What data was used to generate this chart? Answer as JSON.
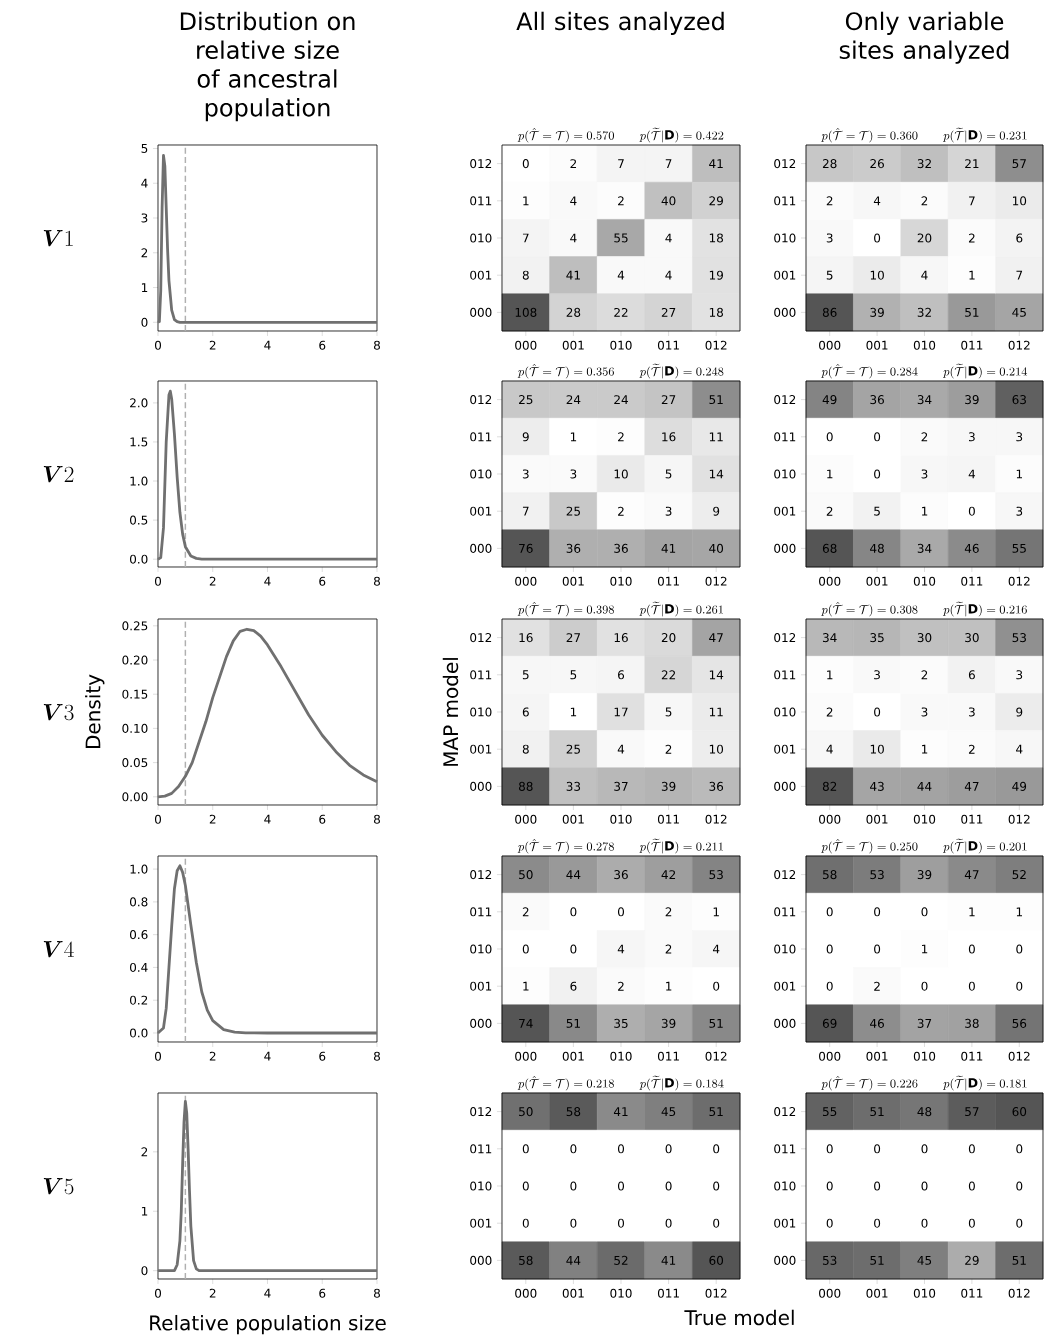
{
  "chart_data": [
    {
      "type": "line",
      "title": "Distribution on relative size of ancestral population",
      "annotations": [
        "\\boldsymbol{V}1"
      ],
      "x": [
        0,
        0.05,
        0.1,
        0.15,
        0.2,
        0.25,
        0.3,
        0.35,
        0.4,
        0.5,
        0.6,
        0.7,
        0.8,
        1.0,
        1.5,
        2,
        4,
        6,
        8
      ],
      "series": [
        {
          "color": "#707070",
          "values": [
            0,
            0.02,
            0.9,
            3.3,
            4.8,
            4.5,
            3.3,
            2.1,
            1.2,
            0.35,
            0.08,
            0.02,
            0,
            0,
            0,
            0,
            0,
            0,
            0
          ]
        }
      ],
      "xlim": [
        0,
        8
      ],
      "xticks": [
        0,
        2,
        4,
        6,
        8
      ],
      "ylim": [
        -0.25,
        5.1
      ],
      "yticks": [
        0,
        1,
        2,
        3,
        4,
        5
      ],
      "ref_lines": [
        {
          "axis": "x",
          "value": 1,
          "color": "#b0b0b0",
          "line_style": "dashed"
        }
      ]
    },
    {
      "type": "heatmap",
      "title": "All sites analyzed",
      "subtitle": "p(\\hat{\\mathcal{T}} = \\mathcal{T}) = 0.570 \\qquad p(\\widetilde{\\mathcal{T}}|\\mathbf{D}) = 0.422",
      "categories": [
        "000",
        "001",
        "010",
        "011",
        "012"
      ],
      "y_categories": [
        "012",
        "011",
        "010",
        "001",
        "000"
      ],
      "data_labels": true,
      "cells": [
        [
          0,
          2,
          7,
          7,
          41
        ],
        [
          1,
          4,
          2,
          40,
          29
        ],
        [
          7,
          4,
          55,
          4,
          18
        ],
        [
          8,
          41,
          4,
          4,
          19
        ],
        [
          108,
          28,
          22,
          27,
          18
        ]
      ]
    },
    {
      "type": "heatmap",
      "title": "Only variable sites analyzed",
      "subtitle": "p(\\hat{\\mathcal{T}} = \\mathcal{T}) = 0.360 \\qquad p(\\widetilde{\\mathcal{T}}|\\mathbf{D}) = 0.231",
      "categories": [
        "000",
        "001",
        "010",
        "011",
        "012"
      ],
      "y_categories": [
        "012",
        "011",
        "010",
        "001",
        "000"
      ],
      "data_labels": true,
      "cells": [
        [
          28,
          26,
          32,
          21,
          57
        ],
        [
          2,
          4,
          2,
          7,
          10
        ],
        [
          3,
          0,
          20,
          2,
          6
        ],
        [
          5,
          10,
          4,
          1,
          7
        ],
        [
          86,
          39,
          32,
          51,
          45
        ]
      ]
    },
    {
      "type": "line",
      "annotations": [
        "\\boldsymbol{V}2"
      ],
      "x": [
        0,
        0.1,
        0.2,
        0.3,
        0.4,
        0.45,
        0.5,
        0.6,
        0.7,
        0.8,
        0.9,
        1.0,
        1.2,
        1.4,
        1.6,
        2,
        3,
        4,
        6,
        8
      ],
      "series": [
        {
          "color": "#707070",
          "values": [
            0,
            0.02,
            0.4,
            1.5,
            2.1,
            2.15,
            2.05,
            1.6,
            1.05,
            0.6,
            0.32,
            0.16,
            0.04,
            0.01,
            0,
            0,
            0,
            0,
            0,
            0
          ]
        }
      ],
      "xlim": [
        0,
        8
      ],
      "xticks": [
        0,
        2,
        4,
        6,
        8
      ],
      "ylim": [
        -0.1,
        2.28
      ],
      "yticks": [
        {
          "value": 0,
          "label": "0.0"
        },
        {
          "value": 0.5,
          "label": "0.5"
        },
        {
          "value": 1,
          "label": "1.0"
        },
        {
          "value": 1.5,
          "label": "1.5"
        },
        {
          "value": 2,
          "label": "2.0"
        }
      ],
      "ref_lines": [
        {
          "axis": "x",
          "value": 1,
          "color": "#b0b0b0",
          "line_style": "dashed"
        }
      ]
    },
    {
      "type": "heatmap",
      "subtitle": "p(\\hat{\\mathcal{T}} = \\mathcal{T}) = 0.356 \\qquad p(\\widetilde{\\mathcal{T}}|\\mathbf{D}) = 0.248",
      "categories": [
        "000",
        "001",
        "010",
        "011",
        "012"
      ],
      "y_categories": [
        "012",
        "011",
        "010",
        "001",
        "000"
      ],
      "data_labels": true,
      "cells": [
        [
          25,
          24,
          24,
          27,
          51
        ],
        [
          9,
          1,
          2,
          16,
          11
        ],
        [
          3,
          3,
          10,
          5,
          14
        ],
        [
          7,
          25,
          2,
          3,
          9
        ],
        [
          76,
          36,
          36,
          41,
          40
        ]
      ]
    },
    {
      "type": "heatmap",
      "subtitle": "p(\\hat{\\mathcal{T}} = \\mathcal{T}) = 0.284 \\qquad p(\\widetilde{\\mathcal{T}}|\\mathbf{D}) = 0.214",
      "categories": [
        "000",
        "001",
        "010",
        "011",
        "012"
      ],
      "y_categories": [
        "012",
        "011",
        "010",
        "001",
        "000"
      ],
      "data_labels": true,
      "cells": [
        [
          49,
          36,
          34,
          39,
          63
        ],
        [
          0,
          0,
          2,
          3,
          3
        ],
        [
          1,
          0,
          3,
          4,
          1
        ],
        [
          2,
          5,
          1,
          0,
          3
        ],
        [
          68,
          48,
          34,
          46,
          55
        ]
      ]
    },
    {
      "type": "line",
      "ylabel": "Density",
      "annotations": [
        "\\boldsymbol{V}3"
      ],
      "x": [
        0,
        0.25,
        0.5,
        0.75,
        1,
        1.25,
        1.5,
        1.75,
        2,
        2.25,
        2.5,
        2.75,
        3,
        3.25,
        3.5,
        3.75,
        4,
        4.5,
        5,
        5.5,
        6,
        6.5,
        7,
        7.5,
        8
      ],
      "series": [
        {
          "color": "#707070",
          "values": [
            0,
            0.001,
            0.005,
            0.015,
            0.03,
            0.05,
            0.08,
            0.11,
            0.145,
            0.175,
            0.205,
            0.228,
            0.242,
            0.245,
            0.243,
            0.235,
            0.222,
            0.19,
            0.155,
            0.12,
            0.09,
            0.066,
            0.046,
            0.032,
            0.022
          ]
        }
      ],
      "xlim": [
        0,
        8
      ],
      "xticks": [
        0,
        2,
        4,
        6,
        8
      ],
      "ylim": [
        -0.012,
        0.26
      ],
      "yticks": [
        {
          "value": 0,
          "label": "0.00"
        },
        {
          "value": 0.05,
          "label": "0.05"
        },
        {
          "value": 0.1,
          "label": "0.10"
        },
        {
          "value": 0.15,
          "label": "0.15"
        },
        {
          "value": 0.2,
          "label": "0.20"
        },
        {
          "value": 0.25,
          "label": "0.25"
        }
      ],
      "ref_lines": [
        {
          "axis": "x",
          "value": 1,
          "color": "#b0b0b0",
          "line_style": "dashed"
        }
      ]
    },
    {
      "type": "heatmap",
      "ylabel": "MAP model",
      "subtitle": "p(\\hat{\\mathcal{T}} = \\mathcal{T}) = 0.398 \\qquad p(\\widetilde{\\mathcal{T}}|\\mathbf{D}) = 0.261",
      "categories": [
        "000",
        "001",
        "010",
        "011",
        "012"
      ],
      "y_categories": [
        "012",
        "011",
        "010",
        "001",
        "000"
      ],
      "data_labels": true,
      "cells": [
        [
          16,
          27,
          16,
          20,
          47
        ],
        [
          5,
          5,
          6,
          22,
          14
        ],
        [
          6,
          1,
          17,
          5,
          11
        ],
        [
          8,
          25,
          4,
          2,
          10
        ],
        [
          88,
          33,
          37,
          39,
          36
        ]
      ]
    },
    {
      "type": "heatmap",
      "subtitle": "p(\\hat{\\mathcal{T}} = \\mathcal{T}) = 0.308 \\qquad p(\\widetilde{\\mathcal{T}}|\\mathbf{D}) = 0.216",
      "categories": [
        "000",
        "001",
        "010",
        "011",
        "012"
      ],
      "y_categories": [
        "012",
        "011",
        "010",
        "001",
        "000"
      ],
      "data_labels": true,
      "cells": [
        [
          34,
          35,
          30,
          30,
          53
        ],
        [
          1,
          3,
          2,
          6,
          3
        ],
        [
          2,
          0,
          3,
          3,
          9
        ],
        [
          4,
          10,
          1,
          2,
          4
        ],
        [
          82,
          43,
          44,
          47,
          49
        ]
      ]
    },
    {
      "type": "line",
      "annotations": [
        "\\boldsymbol{V}4"
      ],
      "x": [
        0,
        0.2,
        0.3,
        0.4,
        0.5,
        0.6,
        0.7,
        0.8,
        0.9,
        1.0,
        1.2,
        1.4,
        1.6,
        1.8,
        2.0,
        2.4,
        2.8,
        3.2,
        4,
        6,
        8
      ],
      "series": [
        {
          "color": "#707070",
          "values": [
            0,
            0.03,
            0.15,
            0.4,
            0.65,
            0.88,
            0.99,
            1.02,
            0.98,
            0.9,
            0.66,
            0.43,
            0.25,
            0.14,
            0.075,
            0.02,
            0.005,
            0.001,
            0,
            0,
            0
          ]
        }
      ],
      "xlim": [
        0,
        8
      ],
      "xticks": [
        0,
        2,
        4,
        6,
        8
      ],
      "ylim": [
        -0.055,
        1.08
      ],
      "yticks": [
        {
          "value": 0,
          "label": "0.0"
        },
        {
          "value": 0.2,
          "label": "0.2"
        },
        {
          "value": 0.4,
          "label": "0.4"
        },
        {
          "value": 0.6,
          "label": "0.6"
        },
        {
          "value": 0.8,
          "label": "0.8"
        },
        {
          "value": 1,
          "label": "1.0"
        }
      ],
      "ref_lines": [
        {
          "axis": "x",
          "value": 1,
          "color": "#b0b0b0",
          "line_style": "dashed"
        }
      ]
    },
    {
      "type": "heatmap",
      "subtitle": "p(\\hat{\\mathcal{T}} = \\mathcal{T}) = 0.278 \\qquad p(\\widetilde{\\mathcal{T}}|\\mathbf{D}) = 0.211",
      "categories": [
        "000",
        "001",
        "010",
        "011",
        "012"
      ],
      "y_categories": [
        "012",
        "011",
        "010",
        "001",
        "000"
      ],
      "data_labels": true,
      "cells": [
        [
          50,
          44,
          36,
          42,
          53
        ],
        [
          2,
          0,
          0,
          2,
          1
        ],
        [
          0,
          0,
          4,
          2,
          4
        ],
        [
          1,
          6,
          2,
          1,
          0
        ],
        [
          74,
          51,
          35,
          39,
          51
        ]
      ]
    },
    {
      "type": "heatmap",
      "subtitle": "p(\\hat{\\mathcal{T}} = \\mathcal{T}) = 0.250 \\qquad p(\\widetilde{\\mathcal{T}}|\\mathbf{D}) = 0.201",
      "categories": [
        "000",
        "001",
        "010",
        "011",
        "012"
      ],
      "y_categories": [
        "012",
        "011",
        "010",
        "001",
        "000"
      ],
      "data_labels": true,
      "cells": [
        [
          58,
          53,
          39,
          47,
          52
        ],
        [
          0,
          0,
          0,
          1,
          1
        ],
        [
          0,
          0,
          1,
          0,
          0
        ],
        [
          0,
          2,
          0,
          0,
          0
        ],
        [
          69,
          46,
          37,
          38,
          56
        ]
      ]
    },
    {
      "type": "line",
      "xlabel": "Relative population size",
      "annotations": [
        "\\boldsymbol{V}5"
      ],
      "x": [
        0,
        0.5,
        0.6,
        0.7,
        0.8,
        0.85,
        0.9,
        0.95,
        1.0,
        1.05,
        1.1,
        1.15,
        1.2,
        1.3,
        1.4,
        1.5,
        1.6,
        2,
        4,
        6,
        8
      ],
      "series": [
        {
          "color": "#707070",
          "values": [
            0,
            0,
            0,
            0.1,
            0.5,
            1.0,
            1.8,
            2.5,
            2.85,
            2.65,
            2.05,
            1.35,
            0.75,
            0.17,
            0.03,
            0,
            0,
            0,
            0,
            0,
            0
          ]
        }
      ],
      "xlim": [
        0,
        8
      ],
      "xticks": [
        0,
        2,
        4,
        6,
        8
      ],
      "ylim": [
        -0.14,
        2.99
      ],
      "yticks": [
        0,
        1,
        2
      ],
      "ref_lines": [
        {
          "axis": "x",
          "value": 1,
          "color": "#b0b0b0",
          "line_style": "dashed"
        }
      ]
    },
    {
      "type": "heatmap",
      "xlabel": "True model",
      "subtitle": "p(\\hat{\\mathcal{T}} = \\mathcal{T}) = 0.218 \\qquad p(\\widetilde{\\mathcal{T}}|\\mathbf{D}) = 0.184",
      "categories": [
        "000",
        "001",
        "010",
        "011",
        "012"
      ],
      "y_categories": [
        "012",
        "011",
        "010",
        "001",
        "000"
      ],
      "data_labels": true,
      "cells": [
        [
          50,
          58,
          41,
          45,
          51
        ],
        [
          0,
          0,
          0,
          0,
          0
        ],
        [
          0,
          0,
          0,
          0,
          0
        ],
        [
          0,
          0,
          0,
          0,
          0
        ],
        [
          58,
          44,
          52,
          41,
          60
        ]
      ]
    },
    {
      "type": "heatmap",
      "subtitle": "p(\\hat{\\mathcal{T}} = \\mathcal{T}) = 0.226 \\qquad p(\\widetilde{\\mathcal{T}}|\\mathbf{D}) = 0.181",
      "categories": [
        "000",
        "001",
        "010",
        "011",
        "012"
      ],
      "y_categories": [
        "012",
        "011",
        "010",
        "001",
        "000"
      ],
      "data_labels": true,
      "cells": [
        [
          55,
          51,
          48,
          57,
          60
        ],
        [
          0,
          0,
          0,
          0,
          0
        ],
        [
          0,
          0,
          0,
          0,
          0
        ],
        [
          0,
          0,
          0,
          0,
          0
        ],
        [
          53,
          51,
          45,
          29,
          51
        ]
      ]
    }
  ]
}
